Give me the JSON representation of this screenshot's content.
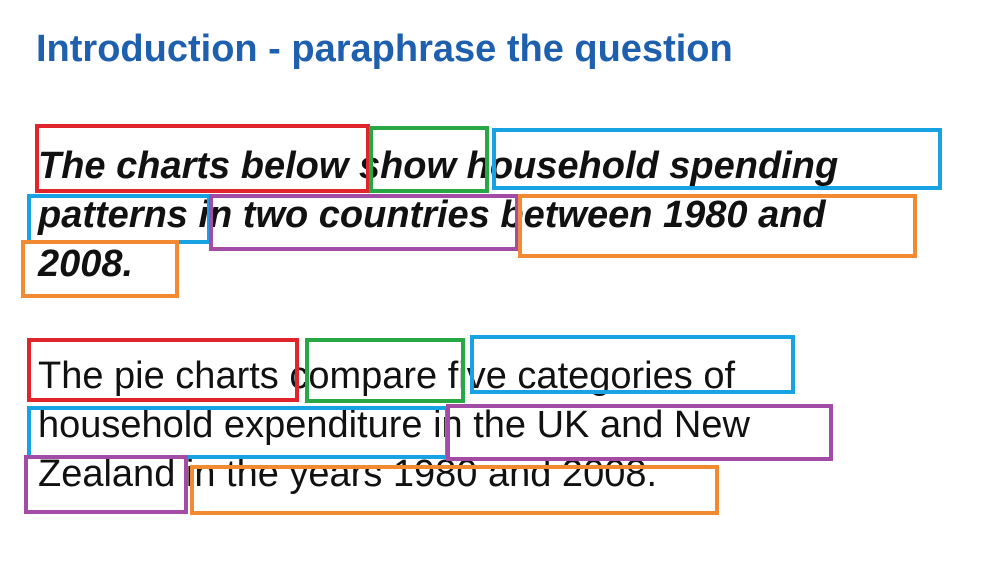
{
  "title": "Introduction - paraphrase the question",
  "question": {
    "lines": [
      "The charts below show household spending",
      "patterns in two countries between 1980 and",
      "2008."
    ]
  },
  "paraphrase": {
    "lines": [
      "The pie charts compare five categories of",
      "household expenditure in the UK and New",
      "Zealand in the years 1980 and 2008."
    ]
  },
  "highlight_colors": {
    "subject": "#e0242b",
    "verb": "#27a844",
    "object": "#17a3e3",
    "place": "#a24ca6",
    "time": "#f28a32"
  }
}
